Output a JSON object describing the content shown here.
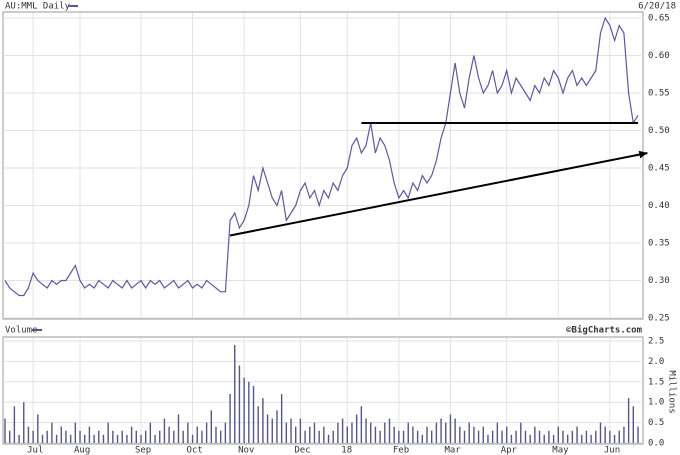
{
  "chart_data": [
    {
      "type": "line",
      "title": "AU:MML Daily",
      "date": "6/20/18",
      "color": "#5a5a9a",
      "values": [
        0.3,
        0.29,
        0.285,
        0.28,
        0.28,
        0.29,
        0.31,
        0.3,
        0.295,
        0.29,
        0.3,
        0.295,
        0.3,
        0.3,
        0.31,
        0.32,
        0.3,
        0.29,
        0.295,
        0.29,
        0.3,
        0.295,
        0.29,
        0.3,
        0.295,
        0.29,
        0.3,
        0.29,
        0.295,
        0.3,
        0.29,
        0.3,
        0.295,
        0.3,
        0.29,
        0.295,
        0.3,
        0.29,
        0.295,
        0.3,
        0.29,
        0.295,
        0.29,
        0.3,
        0.295,
        0.29,
        0.285,
        0.285,
        0.38,
        0.39,
        0.37,
        0.38,
        0.4,
        0.44,
        0.42,
        0.45,
        0.43,
        0.41,
        0.4,
        0.42,
        0.38,
        0.39,
        0.4,
        0.42,
        0.43,
        0.41,
        0.42,
        0.4,
        0.42,
        0.41,
        0.43,
        0.42,
        0.44,
        0.45,
        0.48,
        0.49,
        0.47,
        0.48,
        0.51,
        0.47,
        0.49,
        0.48,
        0.46,
        0.43,
        0.41,
        0.42,
        0.41,
        0.43,
        0.42,
        0.44,
        0.43,
        0.44,
        0.46,
        0.49,
        0.51,
        0.55,
        0.59,
        0.55,
        0.53,
        0.57,
        0.6,
        0.57,
        0.55,
        0.56,
        0.58,
        0.55,
        0.56,
        0.58,
        0.55,
        0.57,
        0.56,
        0.55,
        0.54,
        0.56,
        0.55,
        0.57,
        0.56,
        0.58,
        0.57,
        0.55,
        0.57,
        0.58,
        0.56,
        0.57,
        0.56,
        0.57,
        0.58,
        0.63,
        0.65,
        0.64,
        0.62,
        0.64,
        0.63,
        0.55,
        0.51,
        0.52
      ],
      "ylim": [
        0.25,
        0.65
      ],
      "yticks": [
        0.25,
        {
          "value": 0.3,
          "label": "0.30"
        },
        0.35,
        {
          "value": 0.4,
          "label": "0.40"
        },
        0.45,
        {
          "value": 0.5,
          "label": "0.50"
        },
        0.55,
        {
          "value": 0.6,
          "label": "0.60"
        },
        0.65
      ],
      "grid": true,
      "trendlines": [
        {
          "from": [
            76,
            0.51
          ],
          "to": [
            135,
            0.51
          ],
          "arrow": false
        },
        {
          "from": [
            48,
            0.36
          ],
          "to": [
            137,
            0.47
          ],
          "arrow": true
        }
      ]
    },
    {
      "type": "bar",
      "title": "Volume",
      "source": "©BigCharts.com",
      "ylabel": "Millions",
      "color": "#555588",
      "categories": [
        null,
        null,
        null,
        null,
        null,
        null,
        "Jul",
        null,
        null,
        null,
        null,
        null,
        null,
        null,
        null,
        null,
        "Aug",
        null,
        null,
        null,
        null,
        null,
        null,
        null,
        null,
        null,
        null,
        null,
        null,
        "Sep",
        null,
        null,
        null,
        null,
        null,
        null,
        null,
        null,
        null,
        null,
        "Oct",
        null,
        null,
        null,
        null,
        null,
        null,
        null,
        null,
        null,
        null,
        "Nov",
        null,
        null,
        null,
        null,
        null,
        null,
        null,
        null,
        null,
        null,
        null,
        "Dec",
        null,
        null,
        null,
        null,
        null,
        null,
        null,
        null,
        null,
        "18",
        null,
        null,
        null,
        null,
        null,
        null,
        null,
        null,
        null,
        null,
        "Feb",
        null,
        null,
        null,
        null,
        null,
        null,
        null,
        null,
        null,
        null,
        "Mar",
        null,
        null,
        null,
        null,
        null,
        null,
        null,
        null,
        null,
        null,
        null,
        "Apr",
        null,
        null,
        null,
        null,
        null,
        null,
        null,
        null,
        null,
        null,
        "May",
        null,
        null,
        null,
        null,
        null,
        null,
        null,
        null,
        null,
        null,
        "Jun",
        null,
        null,
        null,
        null,
        null,
        null
      ],
      "values": [
        0.6,
        0.3,
        0.9,
        0.2,
        1.0,
        0.4,
        0.3,
        0.7,
        0.2,
        0.3,
        0.5,
        0.2,
        0.4,
        0.3,
        0.2,
        0.5,
        0.3,
        0.2,
        0.4,
        0.2,
        0.3,
        0.2,
        0.5,
        0.3,
        0.2,
        0.3,
        0.2,
        0.4,
        0.3,
        0.2,
        0.3,
        0.5,
        0.2,
        0.3,
        0.6,
        0.4,
        0.3,
        0.7,
        0.3,
        0.5,
        0.2,
        0.4,
        0.3,
        0.5,
        0.8,
        0.4,
        0.3,
        0.5,
        1.2,
        2.4,
        1.9,
        1.6,
        1.5,
        1.4,
        0.9,
        1.1,
        0.7,
        0.6,
        0.8,
        1.2,
        0.5,
        0.6,
        0.4,
        0.6,
        0.3,
        0.4,
        0.5,
        0.3,
        0.4,
        0.2,
        0.3,
        0.5,
        0.6,
        0.4,
        0.5,
        0.7,
        0.9,
        0.6,
        0.5,
        0.4,
        0.3,
        0.5,
        0.6,
        0.4,
        0.3,
        0.3,
        0.5,
        0.4,
        0.3,
        0.2,
        0.4,
        0.3,
        0.5,
        0.6,
        0.5,
        0.7,
        0.6,
        0.4,
        0.3,
        0.5,
        0.4,
        0.3,
        0.4,
        0.2,
        0.3,
        0.5,
        0.3,
        0.4,
        0.2,
        0.3,
        0.5,
        0.3,
        0.2,
        0.4,
        0.3,
        0.2,
        0.3,
        0.2,
        0.4,
        0.3,
        0.2,
        0.3,
        0.4,
        0.2,
        0.3,
        0.2,
        0.3,
        0.5,
        0.4,
        0.3,
        0.2,
        0.3,
        0.4,
        1.1,
        0.9,
        0.4
      ],
      "ylim": [
        0,
        2.5
      ],
      "yticks": [
        {
          "value": 0,
          "label": "0.0"
        },
        0.5,
        {
          "value": 1,
          "label": "1.0"
        },
        1.5,
        {
          "value": 2,
          "label": "2.0"
        },
        2.5
      ],
      "grid": true
    }
  ]
}
